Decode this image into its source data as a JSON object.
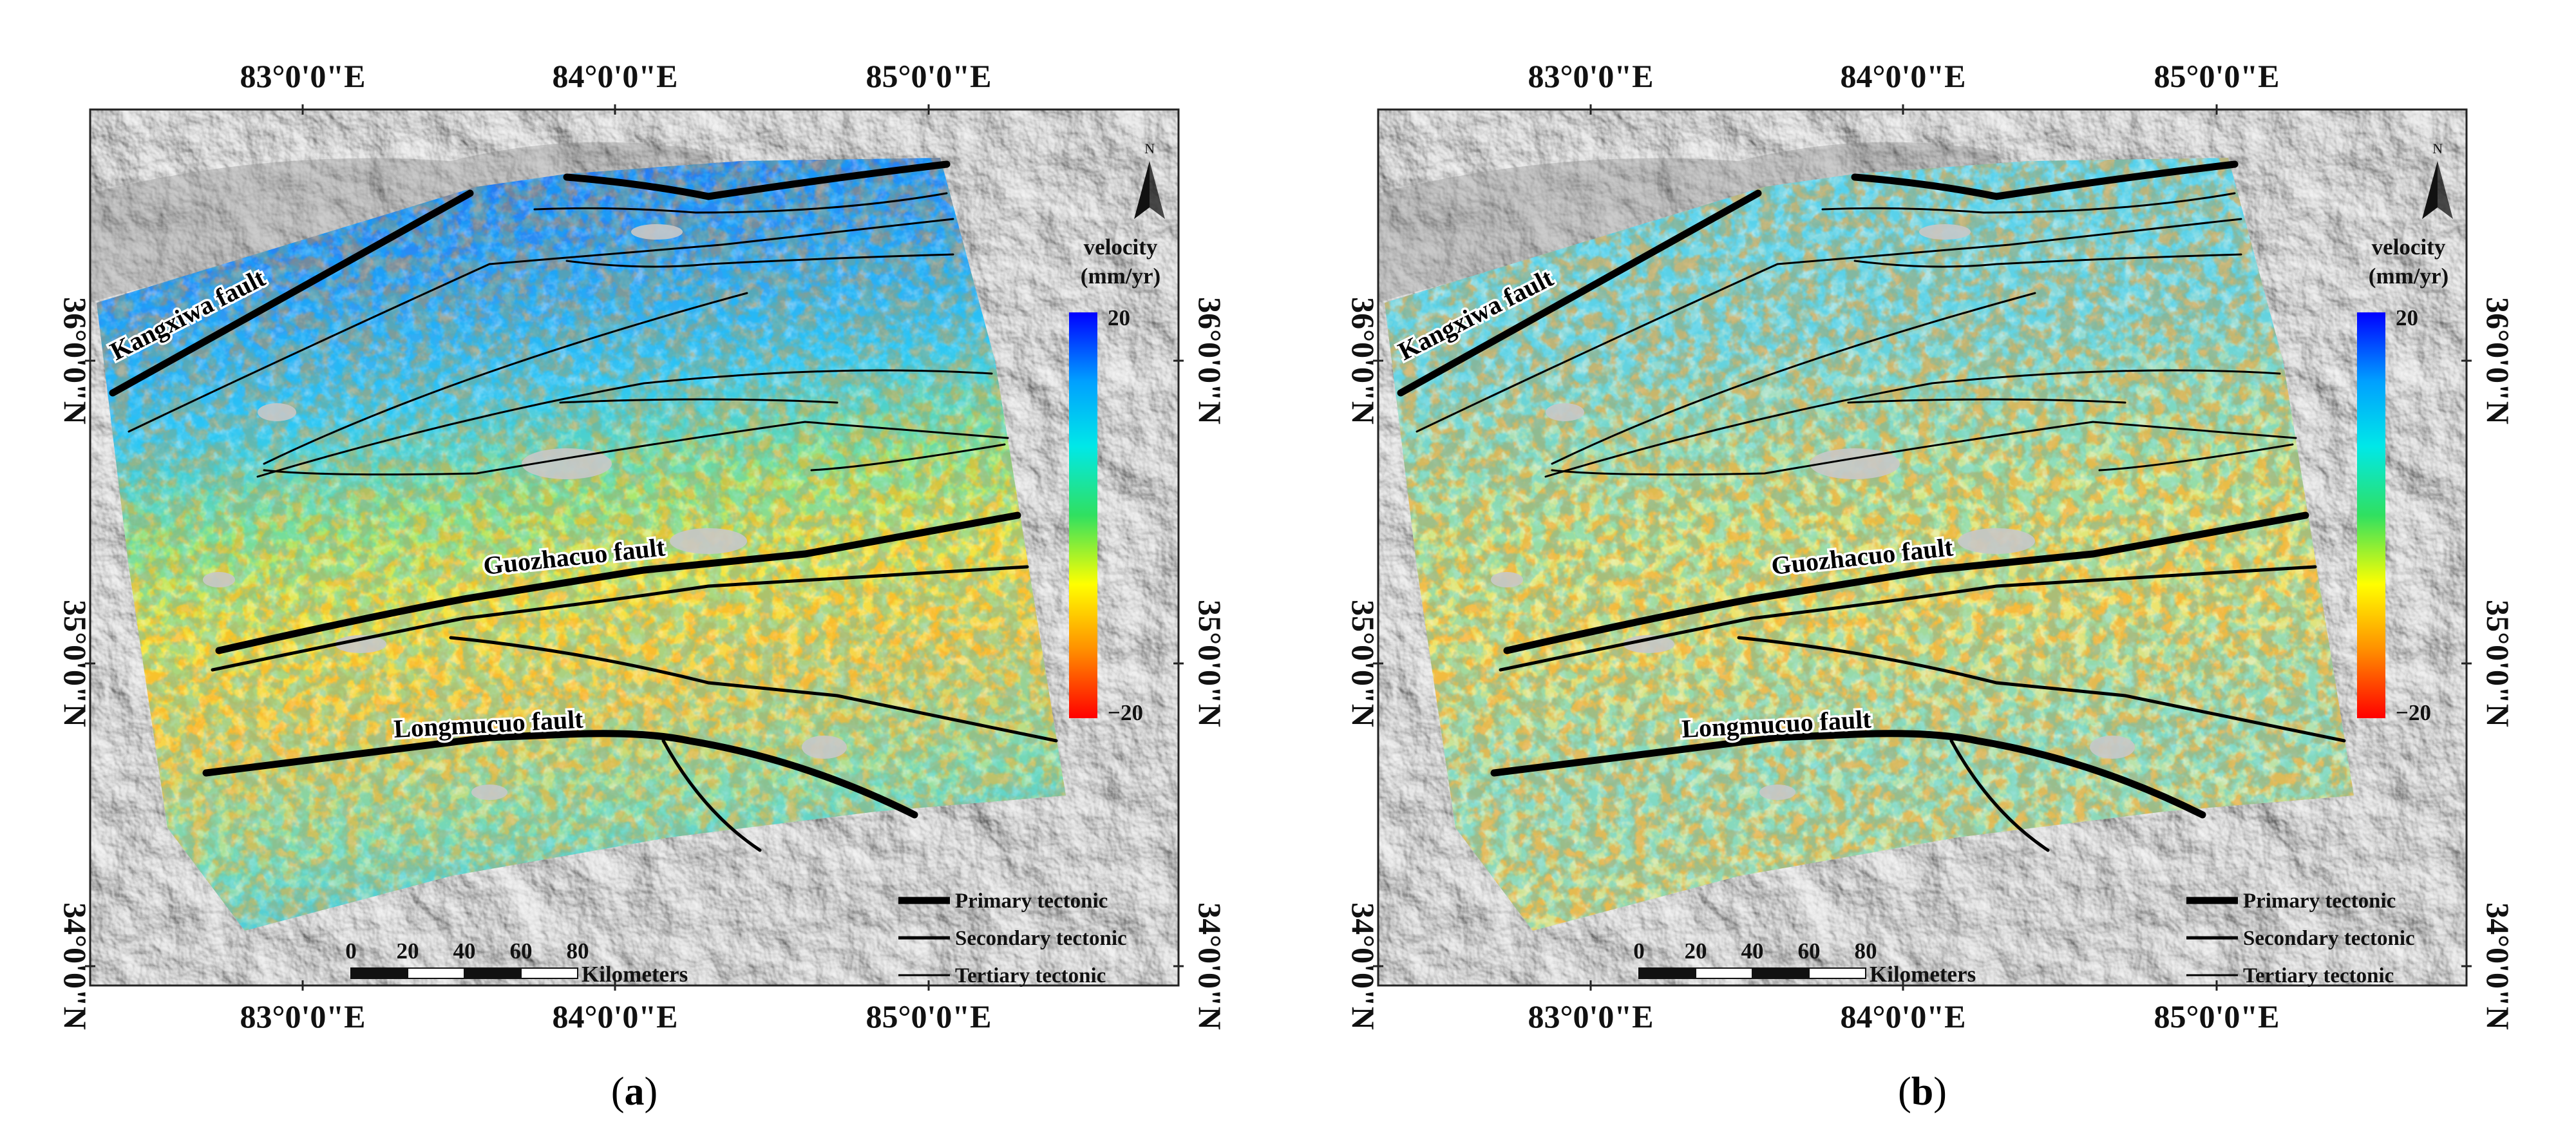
{
  "panels": [
    {
      "id": "a",
      "caption": "a",
      "variant": "blue-north",
      "top_ticks": [
        "83°0'0\"E",
        "84°0'0\"E",
        "85°0'0\"E"
      ],
      "bottom_ticks": [
        "83°0'0\"E",
        "84°0'0\"E",
        "85°0'0\"E"
      ],
      "left_ticks": [
        "36°0'0\"N",
        "35°0'0\"N",
        "34°0'0\"N"
      ],
      "right_ticks": [
        "36°0'0\"N",
        "35°0'0\"N",
        "34°0'0\"N"
      ],
      "faults": {
        "kangxiwa": "Kangxiwa fault",
        "guozhacuo": "Guozhacuo fault",
        "longmucuo": "Longmucuo fault"
      },
      "colorbar": {
        "title_line1": "velocity",
        "title_line2": "(mm/yr)",
        "max_label": "20",
        "min_label": "−20",
        "colors": [
          "#0000ff",
          "#00a0ff",
          "#00e8e8",
          "#30e060",
          "#ffff00",
          "#ff9000",
          "#ff0000"
        ]
      },
      "north_label": "N",
      "legend": [
        "Primary tectonic",
        "Secondary tectonic",
        "Tertiary tectonic"
      ],
      "scalebar": {
        "ticks": [
          "0",
          "20",
          "40",
          "60",
          "80"
        ],
        "unit": "Kilometers"
      }
    },
    {
      "id": "b",
      "caption": "b",
      "variant": "cyan-uniform",
      "top_ticks": [
        "83°0'0\"E",
        "84°0'0\"E",
        "85°0'0\"E"
      ],
      "bottom_ticks": [
        "83°0'0\"E",
        "84°0'0\"E",
        "85°0'0\"E"
      ],
      "left_ticks": [
        "36°0'0\"N",
        "35°0'0\"N",
        "34°0'0\"N"
      ],
      "right_ticks": [
        "36°0'0\"N",
        "35°0'0\"N",
        "34°0'0\"N"
      ],
      "faults": {
        "kangxiwa": "Kangxiwa fault",
        "guozhacuo": "Guozhacuo fault",
        "longmucuo": "Longmucuo fault"
      },
      "colorbar": {
        "title_line1": "velocity",
        "title_line2": "(mm/yr)",
        "max_label": "20",
        "min_label": "−20",
        "colors": [
          "#0000ff",
          "#00a0ff",
          "#00e8e8",
          "#30e060",
          "#ffff00",
          "#ff9000",
          "#ff0000"
        ]
      },
      "north_label": "N",
      "legend": [
        "Primary tectonic",
        "Secondary tectonic",
        "Tertiary tectonic"
      ],
      "scalebar": {
        "ticks": [
          "0",
          "20",
          "40",
          "60",
          "80"
        ],
        "unit": "Kilometers"
      }
    }
  ]
}
